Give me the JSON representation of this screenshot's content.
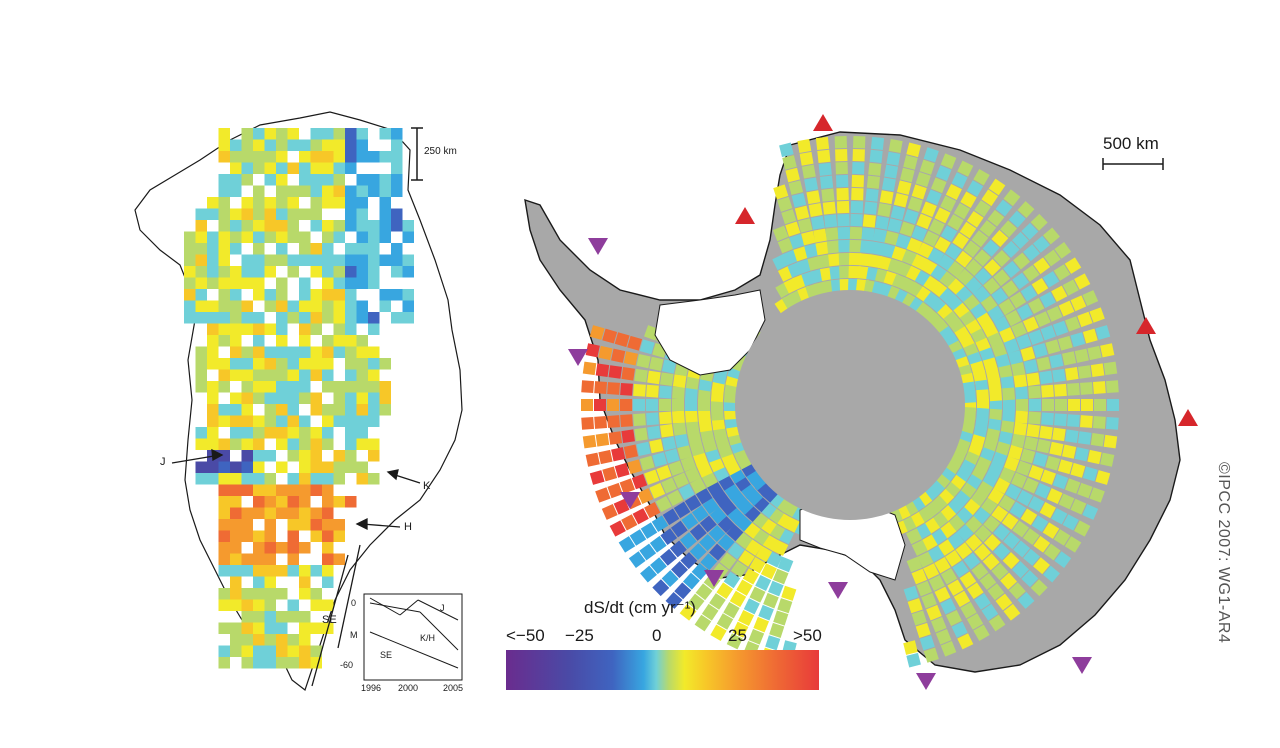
{
  "greenland": {
    "scale_label": "250 km",
    "markers": [
      "J",
      "K",
      "H",
      "SE"
    ],
    "inset": {
      "y_ticks": [
        "0",
        "-60"
      ],
      "y_label": "M",
      "x_ticks": [
        "1996",
        "2000",
        "2005"
      ],
      "series_labels": [
        "J",
        "K/H",
        "SE"
      ]
    }
  },
  "antarctica": {
    "scale_label": "500 km",
    "up_triangle_color": "#d6262b",
    "down_triangle_color": "#8e3d9c"
  },
  "colorbar": {
    "title": "dS/dt (cm yr⁻¹)",
    "ticks": [
      "<−50",
      "−25",
      "0",
      "25",
      ">50"
    ],
    "stops": [
      "#6a2c8e",
      "#4a4aa6",
      "#3f64c0",
      "#38a6e0",
      "#6fd0d8",
      "#b8d96a",
      "#f2ea2a",
      "#f7c728",
      "#f59a2e",
      "#ef6b34",
      "#e83a3a"
    ]
  },
  "credit": "©IPCC  2007: WG1-AR4"
}
